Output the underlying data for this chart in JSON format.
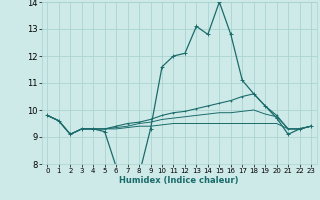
{
  "xlabel": "Humidex (Indice chaleur)",
  "xlim": [
    -0.5,
    23.5
  ],
  "ylim": [
    8,
    14
  ],
  "yticks": [
    8,
    9,
    10,
    11,
    12,
    13,
    14
  ],
  "xticks": [
    0,
    1,
    2,
    3,
    4,
    5,
    6,
    7,
    8,
    9,
    10,
    11,
    12,
    13,
    14,
    15,
    16,
    17,
    18,
    19,
    20,
    21,
    22,
    23
  ],
  "bg_color": "#ceeae8",
  "grid_color": "#aad4d1",
  "line_color": "#1a6b6b",
  "line0": [
    9.8,
    9.6,
    9.1,
    9.3,
    9.3,
    9.2,
    7.9,
    7.7,
    7.6,
    9.3,
    11.6,
    12.0,
    12.1,
    13.1,
    12.8,
    14.0,
    12.8,
    11.1,
    10.6,
    10.15,
    9.7,
    9.1,
    9.3,
    9.4
  ],
  "line1": [
    9.8,
    9.6,
    9.1,
    9.3,
    9.3,
    9.3,
    9.4,
    9.5,
    9.55,
    9.65,
    9.8,
    9.9,
    9.95,
    10.05,
    10.15,
    10.25,
    10.35,
    10.5,
    10.6,
    10.15,
    9.8,
    9.3,
    9.3,
    9.4
  ],
  "line2": [
    9.8,
    9.6,
    9.1,
    9.3,
    9.3,
    9.3,
    9.35,
    9.4,
    9.5,
    9.55,
    9.65,
    9.7,
    9.75,
    9.8,
    9.85,
    9.9,
    9.9,
    9.95,
    10.0,
    9.85,
    9.75,
    9.3,
    9.3,
    9.4
  ],
  "line3": [
    9.8,
    9.6,
    9.1,
    9.3,
    9.3,
    9.3,
    9.3,
    9.35,
    9.4,
    9.4,
    9.45,
    9.5,
    9.5,
    9.5,
    9.5,
    9.5,
    9.5,
    9.5,
    9.5,
    9.5,
    9.5,
    9.3,
    9.3,
    9.4
  ]
}
